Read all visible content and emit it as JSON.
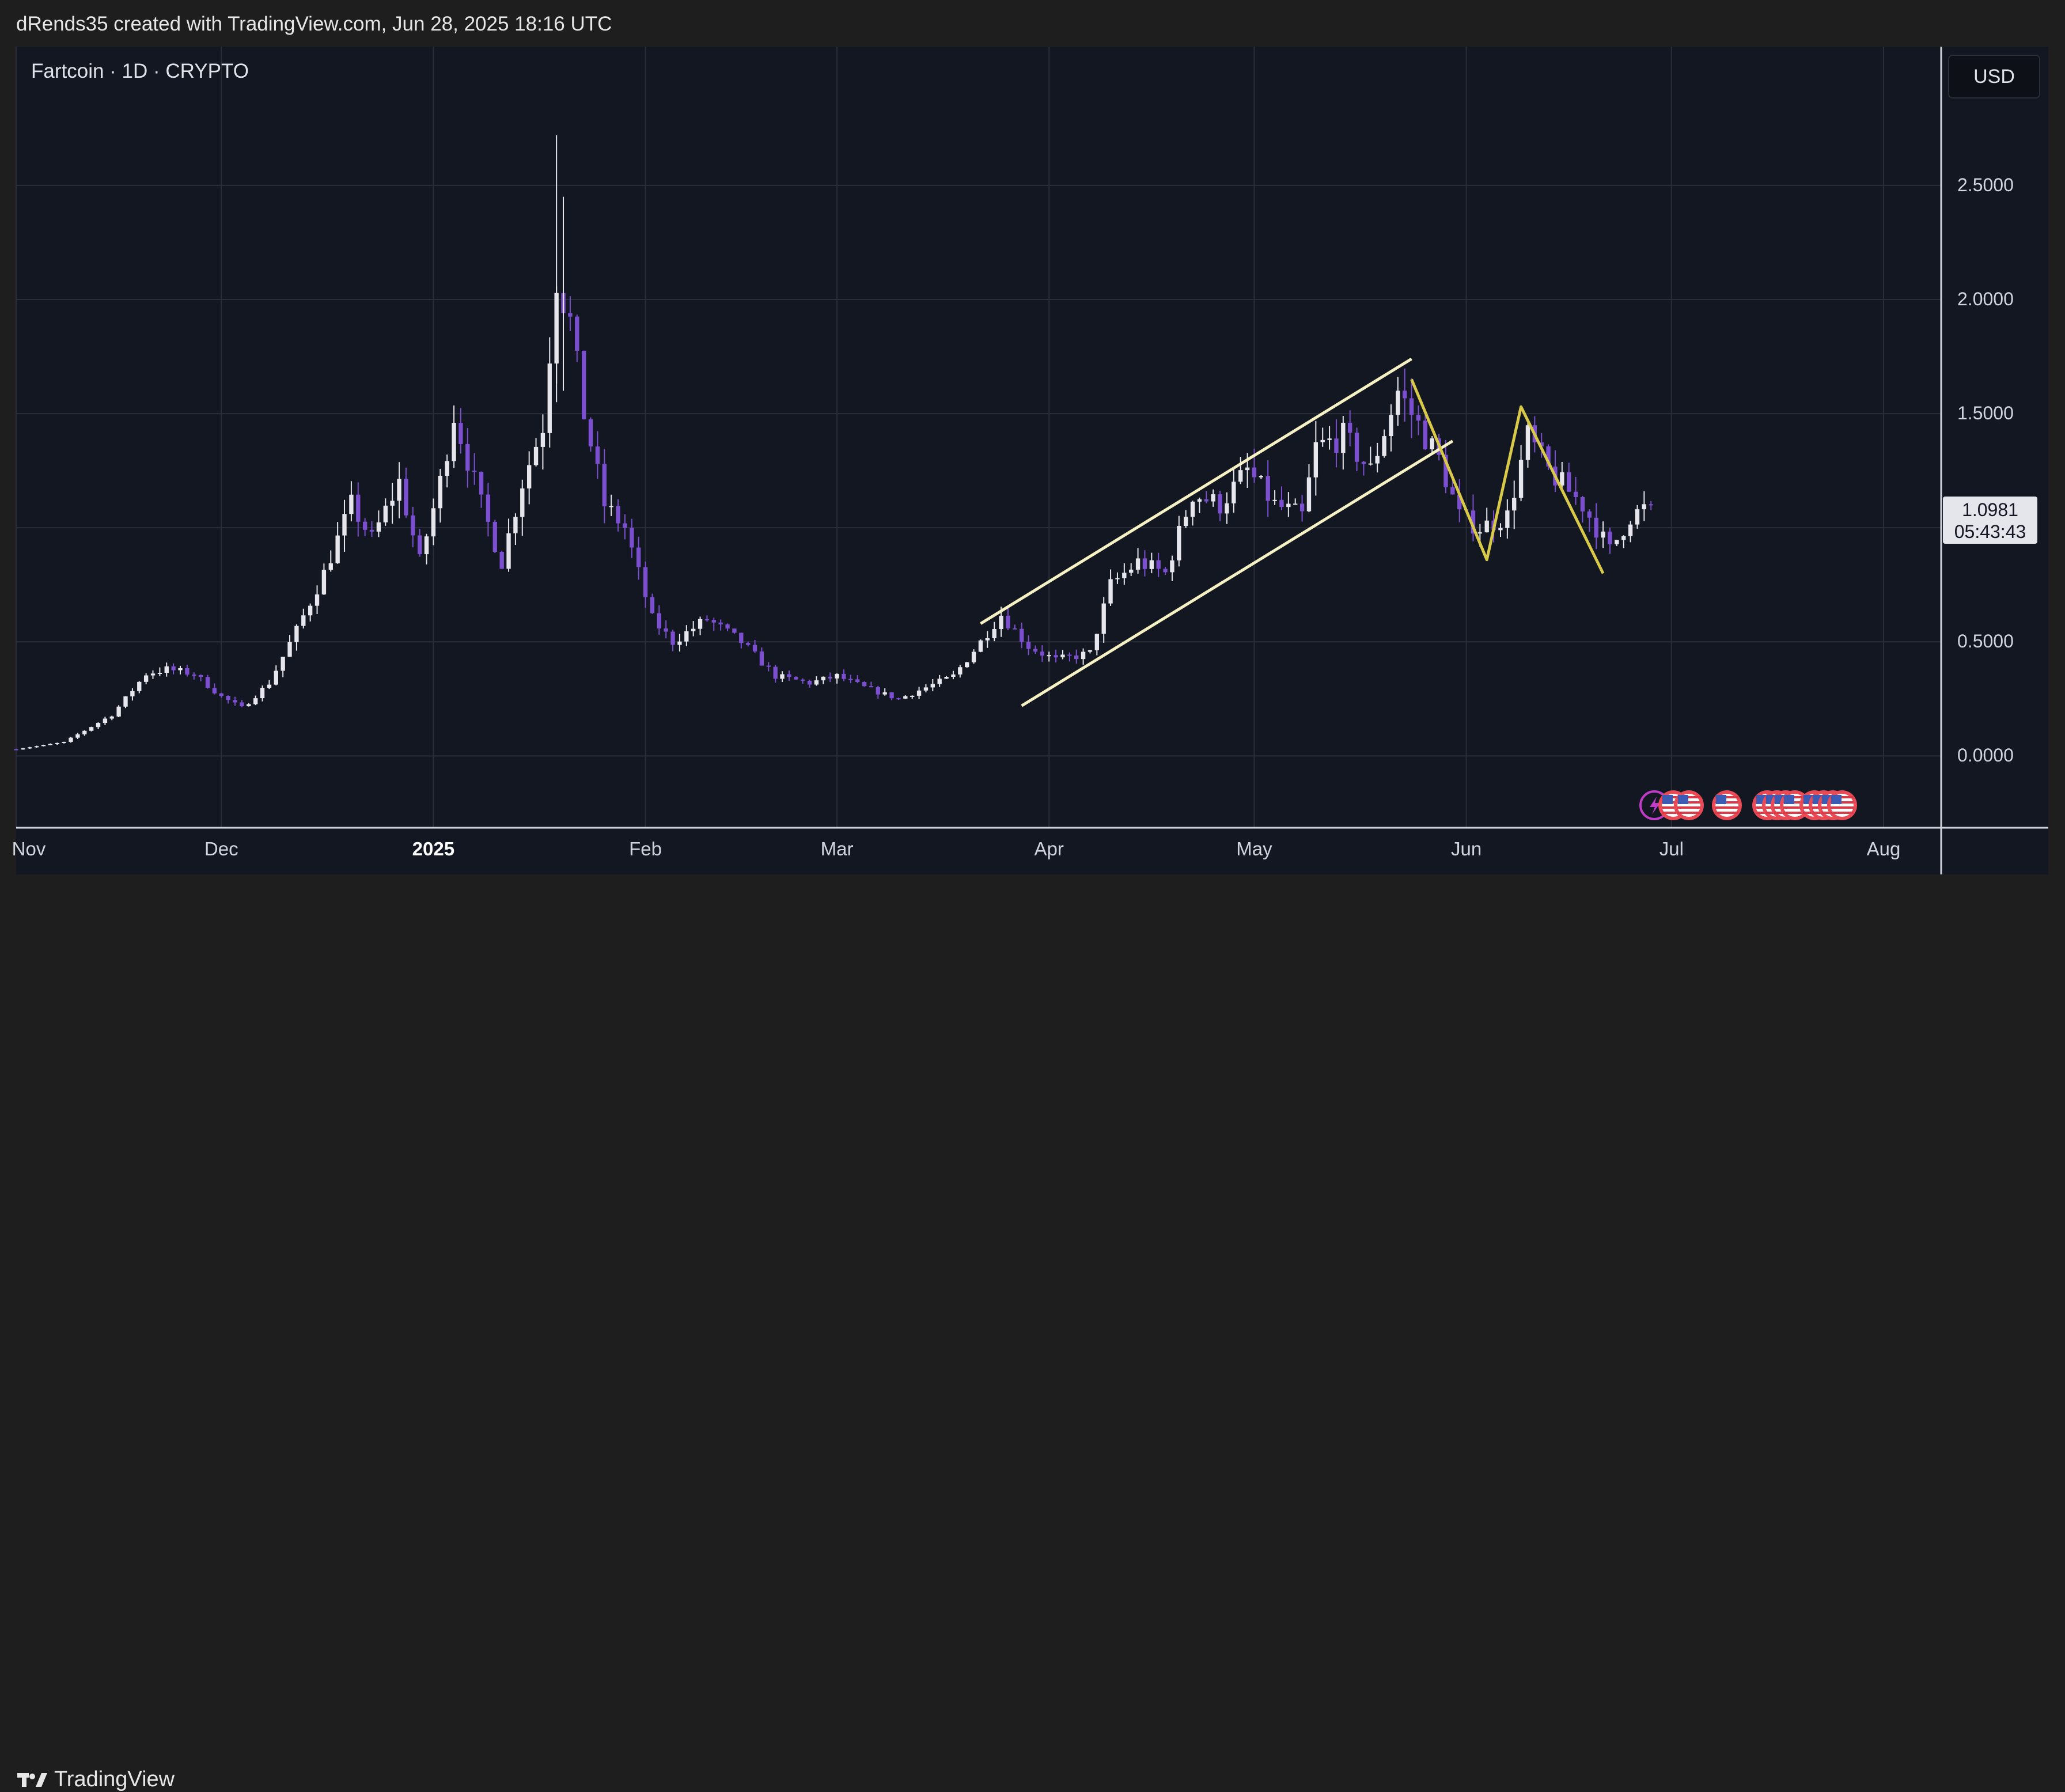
{
  "header": {
    "attribution": "dRends35 created with TradingView.com, Jun 28, 2025 18:16 UTC"
  },
  "symbol": {
    "title": "Fartcoin · 1D · CRYPTO"
  },
  "currency": "USD",
  "last_price": {
    "value": "1.0981",
    "countdown": "05:43:43"
  },
  "footer": {
    "brand": "TradingView",
    "logo_icon": "tradingview-logo-icon"
  },
  "colors": {
    "background": "#131722",
    "up_candle": "#e6e6ec",
    "down_candle": "#7b4fd0",
    "channel_line": "#f6f2c4",
    "pattern_line": "#d9c948",
    "grid": "#2a2e39"
  },
  "event_icons": [
    "lightning-icon",
    "us-flag-icon",
    "us-flag-icon",
    "us-flag-icon",
    "us-flag-icon",
    "us-flag-icon",
    "us-flag-icon",
    "us-flag-icon",
    "us-flag-icon",
    "us-flag-icon",
    "us-flag-icon",
    "us-flag-icon",
    "us-flag-icon"
  ],
  "chart_data": {
    "type": "candlestick",
    "title": "Fartcoin · 1D · CRYPTO",
    "y_ticks": [
      "2.5000",
      "2.0000",
      "1.5000",
      "0.5000",
      "0.0000"
    ],
    "x_ticks": [
      {
        "label": "Nov",
        "bold": false
      },
      {
        "label": "Dec",
        "bold": false
      },
      {
        "label": "2025",
        "bold": true
      },
      {
        "label": "Feb",
        "bold": false
      },
      {
        "label": "Mar",
        "bold": false
      },
      {
        "label": "Apr",
        "bold": false
      },
      {
        "label": "May",
        "bold": false
      },
      {
        "label": "Jun",
        "bold": false
      },
      {
        "label": "Jul",
        "bold": false
      },
      {
        "label": "Aug",
        "bold": false
      }
    ],
    "ylim": [
      -0.1,
      3.06
    ],
    "x_range": [
      "2024-11-01",
      "2025-08-01"
    ],
    "grid": true,
    "close_anchors": [
      [
        "2024-11-01",
        0.03
      ],
      [
        "2024-11-08",
        0.06
      ],
      [
        "2024-11-15",
        0.18
      ],
      [
        "2024-11-20",
        0.36
      ],
      [
        "2024-11-23",
        0.38
      ],
      [
        "2024-11-27",
        0.36
      ],
      [
        "2024-12-01",
        0.26
      ],
      [
        "2024-12-04",
        0.21
      ],
      [
        "2024-12-08",
        0.32
      ],
      [
        "2024-12-12",
        0.55
      ],
      [
        "2024-12-16",
        0.8
      ],
      [
        "2024-12-20",
        1.1
      ],
      [
        "2024-12-23",
        0.95
      ],
      [
        "2024-12-27",
        1.2
      ],
      [
        "2024-12-30",
        0.85
      ],
      [
        "2025-01-02",
        1.2
      ],
      [
        "2025-01-04",
        1.5
      ],
      [
        "2025-01-08",
        1.1
      ],
      [
        "2025-01-11",
        0.85
      ],
      [
        "2025-01-14",
        1.2
      ],
      [
        "2025-01-17",
        1.45
      ],
      [
        "2025-01-19",
        2.1
      ],
      [
        "2025-01-21",
        1.9
      ],
      [
        "2025-01-23",
        1.5
      ],
      [
        "2025-01-26",
        1.1
      ],
      [
        "2025-01-29",
        1.0
      ],
      [
        "2025-02-02",
        0.6
      ],
      [
        "2025-02-05",
        0.5
      ],
      [
        "2025-02-10",
        0.6
      ],
      [
        "2025-02-15",
        0.5
      ],
      [
        "2025-02-20",
        0.35
      ],
      [
        "2025-02-25",
        0.32
      ],
      [
        "2025-03-01",
        0.35
      ],
      [
        "2025-03-05",
        0.3
      ],
      [
        "2025-03-10",
        0.25
      ],
      [
        "2025-03-14",
        0.3
      ],
      [
        "2025-03-18",
        0.35
      ],
      [
        "2025-03-22",
        0.5
      ],
      [
        "2025-03-25",
        0.62
      ],
      [
        "2025-03-29",
        0.48
      ],
      [
        "2025-04-02",
        0.42
      ],
      [
        "2025-04-07",
        0.45
      ],
      [
        "2025-04-10",
        0.75
      ],
      [
        "2025-04-14",
        0.85
      ],
      [
        "2025-04-18",
        0.8
      ],
      [
        "2025-04-22",
        1.15
      ],
      [
        "2025-04-26",
        1.1
      ],
      [
        "2025-04-30",
        1.25
      ],
      [
        "2025-05-04",
        1.1
      ],
      [
        "2025-05-08",
        1.05
      ],
      [
        "2025-05-10",
        1.35
      ],
      [
        "2025-05-14",
        1.4
      ],
      [
        "2025-05-18",
        1.25
      ],
      [
        "2025-05-22",
        1.6
      ],
      [
        "2025-05-25",
        1.45
      ],
      [
        "2025-05-28",
        1.3
      ],
      [
        "2025-05-31",
        1.05
      ],
      [
        "2025-06-03",
        1.0
      ],
      [
        "2025-06-07",
        1.05
      ],
      [
        "2025-06-10",
        1.4
      ],
      [
        "2025-06-13",
        1.25
      ],
      [
        "2025-06-18",
        1.1
      ],
      [
        "2025-06-22",
        0.9
      ],
      [
        "2025-06-25",
        1.05
      ],
      [
        "2025-06-28",
        1.0981
      ]
    ],
    "drawings": {
      "channel_upper": [
        [
          "2025-03-22",
          0.58
        ],
        [
          "2025-05-24",
          1.74
        ]
      ],
      "channel_lower": [
        [
          "2025-03-28",
          0.22
        ],
        [
          "2025-05-30",
          1.38
        ]
      ],
      "zigzag": [
        [
          "2025-05-24",
          1.65
        ],
        [
          "2025-06-04",
          0.86
        ],
        [
          "2025-06-09",
          1.53
        ],
        [
          "2025-06-21",
          0.8
        ]
      ]
    }
  }
}
